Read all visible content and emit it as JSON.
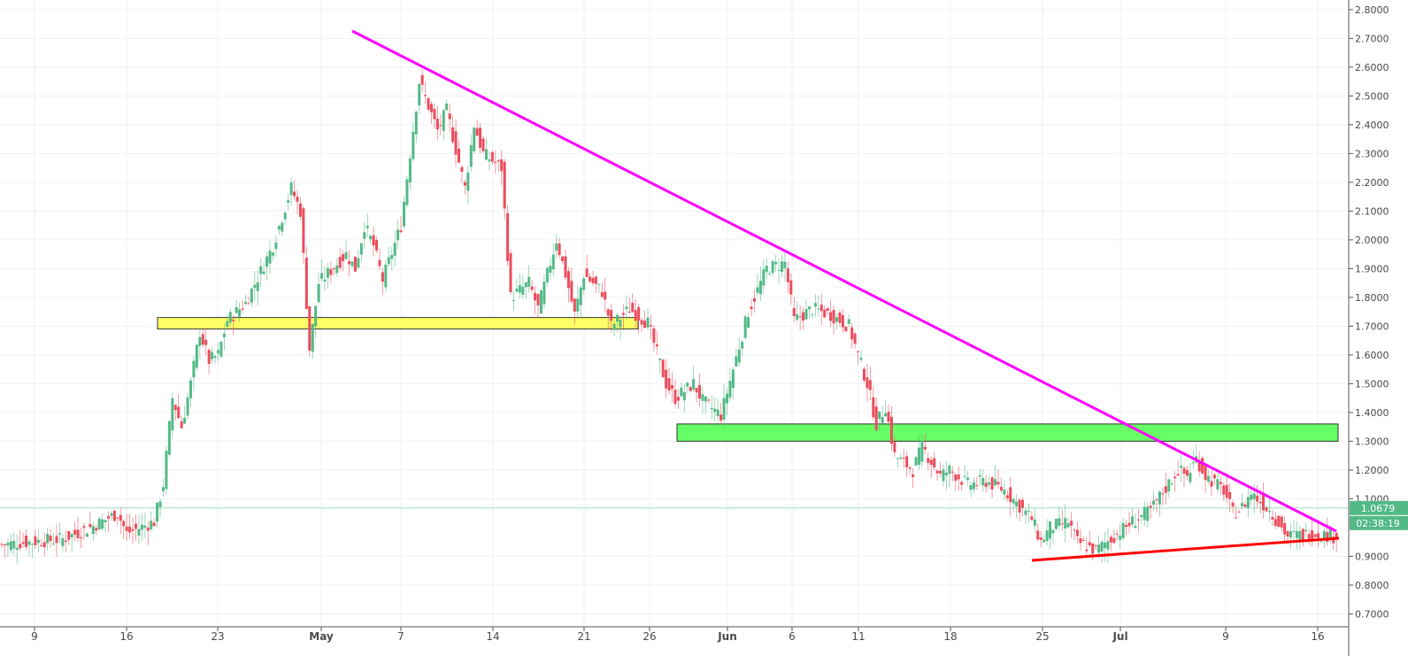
{
  "chart_data": {
    "type": "candlestick",
    "x_ticks": [
      "9",
      "16",
      "23",
      "May",
      "7",
      "14",
      "21",
      "26",
      "Jun",
      "6",
      "11",
      "18",
      "25",
      "Jul",
      "9",
      "16"
    ],
    "y_ticks": [
      "2.8000",
      "2.7000",
      "2.6000",
      "2.5000",
      "2.4000",
      "2.3000",
      "2.2000",
      "2.1000",
      "2.0000",
      "1.9000",
      "1.8000",
      "1.7000",
      "1.6000",
      "1.5000",
      "1.4000",
      "1.3000",
      "1.2000",
      "1.1000",
      "0.9000",
      "0.8000",
      "0.7000"
    ],
    "ylim": [
      0.65,
      2.82
    ],
    "last_price": "1.0679",
    "last_price_value": 1.0679,
    "countdown": "02:38:19",
    "grid": true,
    "close_path": [
      [
        0,
        0.94
      ],
      [
        7,
        0.96
      ],
      [
        10,
        1.0
      ],
      [
        13,
        1.05
      ],
      [
        14,
        0.98
      ],
      [
        17,
        1.02
      ],
      [
        18,
        1.15
      ],
      [
        19,
        1.45
      ],
      [
        20,
        1.35
      ],
      [
        21,
        1.5
      ],
      [
        22,
        1.68
      ],
      [
        23,
        1.58
      ],
      [
        24,
        1.6
      ],
      [
        25,
        1.72
      ],
      [
        27,
        1.78
      ],
      [
        30,
        1.98
      ],
      [
        32,
        2.18
      ],
      [
        33,
        2.1
      ],
      [
        34,
        1.62
      ],
      [
        35,
        1.85
      ],
      [
        38,
        1.95
      ],
      [
        39,
        1.9
      ],
      [
        40,
        2.05
      ],
      [
        41,
        1.98
      ],
      [
        42,
        1.86
      ],
      [
        44,
        2.05
      ],
      [
        46,
        2.55
      ],
      [
        48,
        2.38
      ],
      [
        49,
        2.45
      ],
      [
        51,
        2.18
      ],
      [
        52,
        2.4
      ],
      [
        53,
        2.3
      ],
      [
        55,
        2.25
      ],
      [
        56,
        1.8
      ],
      [
        58,
        1.85
      ],
      [
        59,
        1.76
      ],
      [
        61,
        2.0
      ],
      [
        62,
        1.88
      ],
      [
        63,
        1.74
      ],
      [
        64,
        1.88
      ],
      [
        66,
        1.82
      ],
      [
        67,
        1.7
      ],
      [
        69,
        1.76
      ],
      [
        71,
        1.71
      ],
      [
        73,
        1.5
      ],
      [
        74,
        1.45
      ],
      [
        76,
        1.5
      ],
      [
        77,
        1.44
      ],
      [
        79,
        1.39
      ],
      [
        82,
        1.75
      ],
      [
        84,
        1.9
      ],
      [
        86,
        1.92
      ],
      [
        87,
        1.72
      ],
      [
        89,
        1.76
      ],
      [
        91,
        1.74
      ],
      [
        93,
        1.7
      ],
      [
        95,
        1.5
      ],
      [
        96,
        1.36
      ],
      [
        97,
        1.42
      ],
      [
        98,
        1.25
      ],
      [
        100,
        1.2
      ],
      [
        101,
        1.28
      ],
      [
        103,
        1.18
      ],
      [
        104,
        1.2
      ],
      [
        106,
        1.15
      ],
      [
        108,
        1.16
      ],
      [
        110,
        1.13
      ],
      [
        113,
        1.03
      ],
      [
        114,
        0.95
      ],
      [
        115,
        1.0
      ],
      [
        117,
        1.02
      ],
      [
        118,
        0.95
      ],
      [
        120,
        0.92
      ],
      [
        122,
        0.97
      ],
      [
        124,
        1.02
      ],
      [
        126,
        1.06
      ],
      [
        129,
        1.2
      ],
      [
        130,
        1.18
      ],
      [
        131,
        1.24
      ],
      [
        132,
        1.18
      ],
      [
        134,
        1.13
      ],
      [
        135,
        1.05
      ],
      [
        136,
        1.07
      ],
      [
        137,
        1.12
      ],
      [
        139,
        1.06
      ],
      [
        141,
        0.97
      ],
      [
        144,
        0.98
      ],
      [
        146,
        0.97
      ],
      [
        148,
        1.0
      ],
      [
        149,
        1.01
      ],
      [
        150,
        1.12
      ],
      [
        151,
        1.07
      ]
    ]
  },
  "annotations": {
    "resistance_line_color": "#ff00ff",
    "support_line_color": "#ff0000",
    "yellow_zone": {
      "y_low": 1.69,
      "y_high": 1.73,
      "color": "#ffff66"
    },
    "green_zone": {
      "y_low": 1.3,
      "y_high": 1.36,
      "color": "#66ff66"
    }
  },
  "colors": {
    "bull": "#53b987",
    "bear": "#eb4d5c",
    "price_line": "#53b987"
  }
}
